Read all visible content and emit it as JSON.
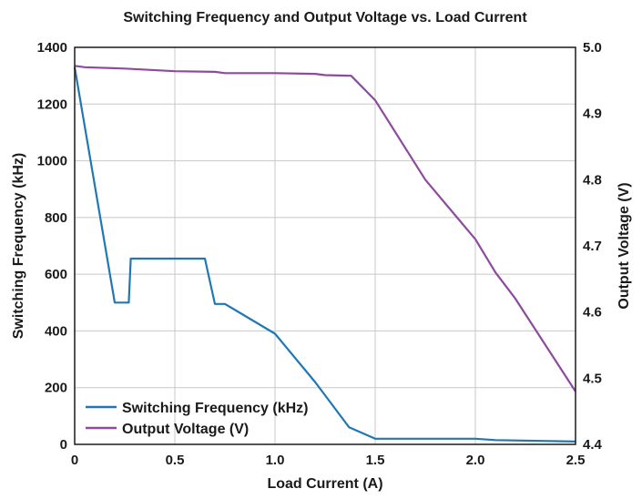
{
  "chart_data": {
    "type": "line",
    "title": "Switching Frequency and Output Voltage vs. Load Current",
    "xlabel": "Load Current (A)",
    "ylabel_left": "Switching Frequency (kHz)",
    "ylabel_right": "Output Voltage (V)",
    "xlim": [
      0,
      2.5
    ],
    "ylim_left": [
      0,
      1400
    ],
    "ylim_right": [
      4.4,
      5.0
    ],
    "x_ticks": [
      "0",
      "0.5",
      "1.0",
      "1.5",
      "2.0",
      "2.5"
    ],
    "x_tick_values": [
      0,
      0.5,
      1.0,
      1.5,
      2.0,
      2.5
    ],
    "y_left_ticks": [
      "0",
      "200",
      "400",
      "600",
      "800",
      "1000",
      "1200",
      "1400"
    ],
    "y_left_tick_values": [
      0,
      200,
      400,
      600,
      800,
      1000,
      1200,
      1400
    ],
    "y_right_ticks": [
      "4.4",
      "4.5",
      "4.6",
      "4.7",
      "4.8",
      "4.9",
      "5.0"
    ],
    "y_right_tick_values": [
      4.4,
      4.5,
      4.6,
      4.7,
      4.8,
      4.9,
      5.0
    ],
    "grid": true,
    "legend_position": "bottom-left",
    "series": [
      {
        "name": "Switching Frequency (kHz)",
        "axis": "left",
        "color": "#1f77b4",
        "x": [
          0,
          0.2,
          0.27,
          0.28,
          0.65,
          0.7,
          0.75,
          1.0,
          1.2,
          1.37,
          1.5,
          2.0,
          2.1,
          2.5
        ],
        "values": [
          1330,
          500,
          500,
          655,
          655,
          495,
          495,
          390,
          220,
          60,
          20,
          20,
          15,
          10
        ]
      },
      {
        "name": "Output Voltage (V)",
        "axis": "right",
        "color": "#8e4a9e",
        "x": [
          0,
          0.05,
          0.25,
          0.5,
          0.7,
          0.75,
          1.0,
          1.2,
          1.25,
          1.38,
          1.5,
          1.75,
          2.0,
          2.1,
          2.2,
          2.5
        ],
        "values": [
          4.972,
          4.97,
          4.968,
          4.964,
          4.963,
          4.961,
          4.961,
          4.96,
          4.958,
          4.957,
          4.92,
          4.8,
          4.71,
          4.66,
          4.62,
          4.48
        ]
      }
    ]
  }
}
